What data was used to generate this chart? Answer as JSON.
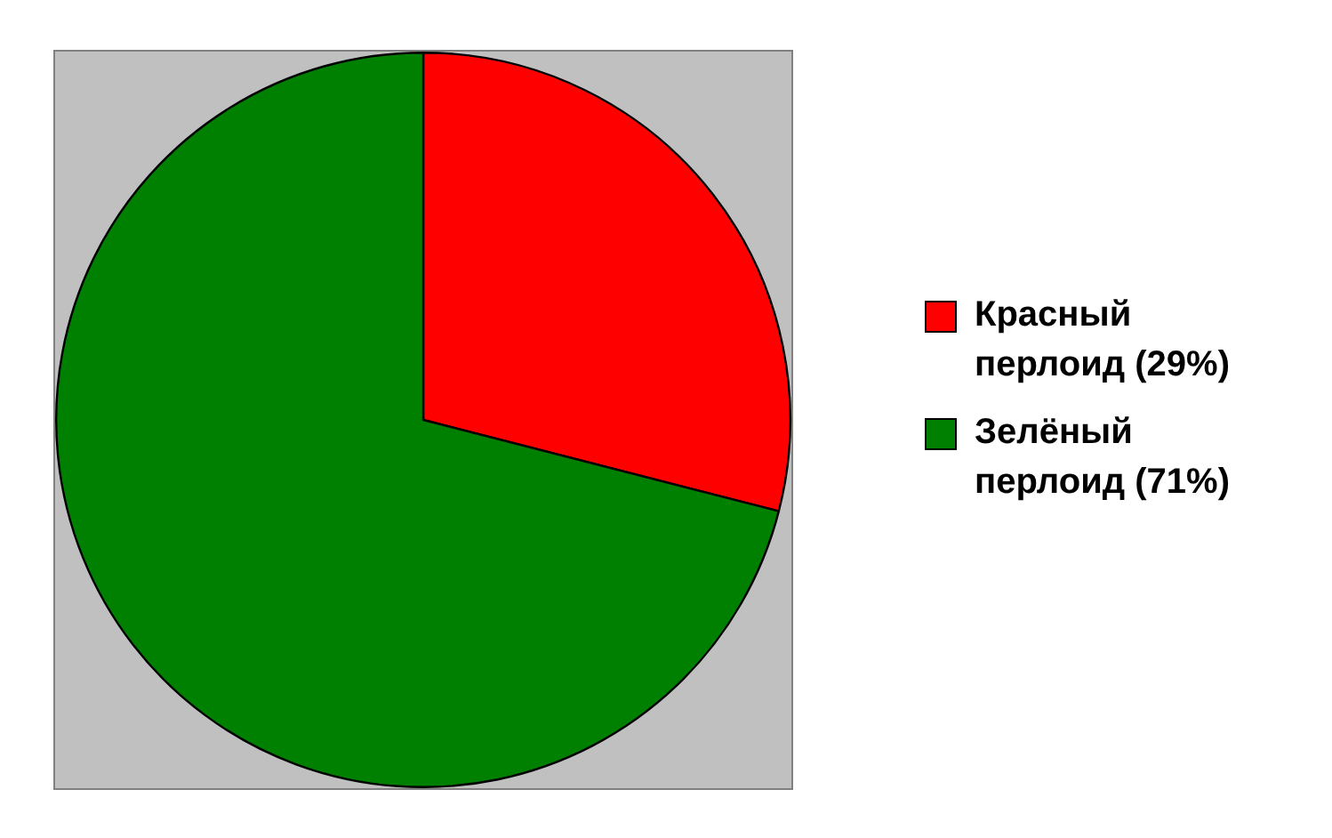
{
  "chart_data": {
    "type": "pie",
    "categories": [
      "Красный перлоид (29%)",
      "Зелёный перлоид (71%)"
    ],
    "values": [
      29,
      71
    ],
    "colors": [
      "#ff0000",
      "#008000"
    ],
    "legend": "right"
  }
}
